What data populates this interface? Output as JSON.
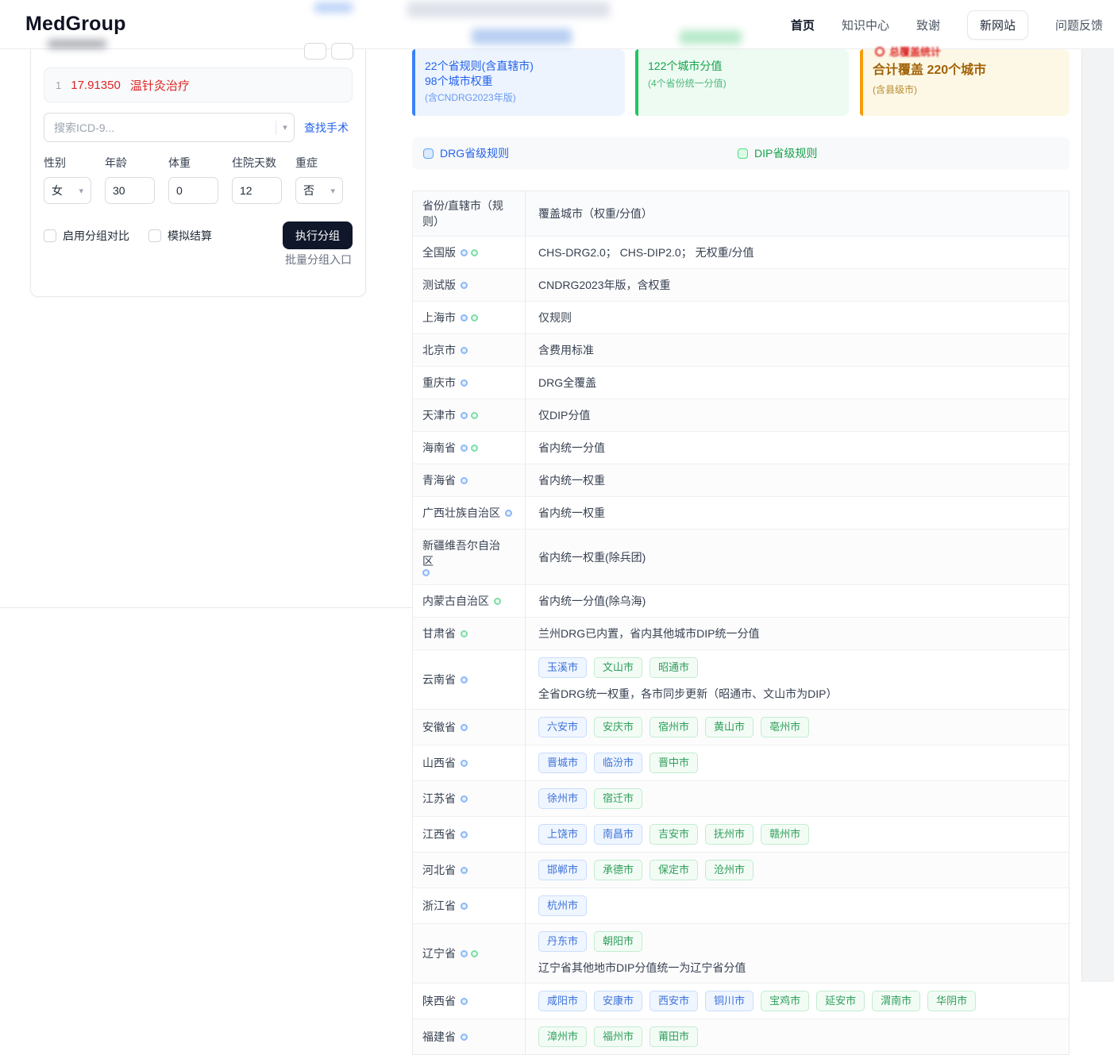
{
  "header": {
    "brand": "MedGroup",
    "nav": [
      {
        "label": "首页",
        "active": true,
        "boxed": false
      },
      {
        "label": "知识中心",
        "active": false,
        "boxed": false
      },
      {
        "label": "致谢",
        "active": false,
        "boxed": false
      },
      {
        "label": "新网站",
        "active": false,
        "boxed": true
      },
      {
        "label": "问题反馈",
        "active": false,
        "boxed": false
      }
    ]
  },
  "panel": {
    "diagnosis": {
      "index": "1",
      "code": "17.91350",
      "name": "温针灸治疗"
    },
    "search": {
      "placeholder": "搜索ICD-9...",
      "find_link": "查找手术"
    },
    "fields": [
      {
        "label": "性别",
        "value": "女",
        "type": "select"
      },
      {
        "label": "年龄",
        "value": "30",
        "type": "input"
      },
      {
        "label": "体重",
        "value": "0",
        "type": "input"
      },
      {
        "label": "住院天数",
        "value": "12",
        "type": "input"
      },
      {
        "label": "重症",
        "value": "否",
        "type": "select"
      }
    ],
    "checkboxes": [
      {
        "label": "启用分组对比",
        "checked": false
      },
      {
        "label": "模拟结算",
        "checked": false
      }
    ],
    "run_button": "执行分组",
    "batch_link": "批量分组入口"
  },
  "stats": {
    "card1": {
      "line1": "22个省规则(含直辖市)",
      "line2": "98个城市权重",
      "line3": "(含CNDRG2023年版)",
      "accent": "#3b82f6"
    },
    "card2": {
      "line1": "122个城市分值",
      "line2": "(4个省份统一分值)",
      "accent": "#22c55e"
    },
    "card3": {
      "title": "总覆盖统计",
      "line1": "合计覆盖 220个城市",
      "line2": "(含县级市)",
      "accent": "#f59e0b"
    }
  },
  "legend": {
    "drg": "DRG省级规则",
    "dip": "DIP省级规则"
  },
  "table": {
    "headers": [
      "省份/直辖市（规则）",
      "覆盖城市（权重/分值）"
    ],
    "rows": [
      {
        "name": "全国版",
        "dots": [
          "drg",
          "dip"
        ],
        "text": "CHS-DRG2.0； CHS-DIP2.0； 无权重/分值"
      },
      {
        "name": "测试版",
        "dots": [
          "drg"
        ],
        "text": "CNDRG2023年版，含权重"
      },
      {
        "name": "上海市",
        "dots": [
          "drg",
          "dip"
        ],
        "text": "仅规则"
      },
      {
        "name": "北京市",
        "dots": [
          "drg"
        ],
        "text": "含费用标准"
      },
      {
        "name": "重庆市",
        "dots": [
          "drg"
        ],
        "text": "DRG全覆盖"
      },
      {
        "name": "天津市",
        "dots": [
          "drg",
          "dip"
        ],
        "text": "仅DIP分值"
      },
      {
        "name": "海南省",
        "dots": [
          "drg",
          "dip"
        ],
        "text": "省内统一分值"
      },
      {
        "name": "青海省",
        "dots": [
          "drg"
        ],
        "text": "省内统一权重"
      },
      {
        "name": "广西壮族自治区",
        "dots": [
          "drg"
        ],
        "text": "省内统一权重"
      },
      {
        "name": "新疆维吾尔自治区",
        "dots": [
          "drg"
        ],
        "text": "省内统一权重(除兵团)"
      },
      {
        "name": "内蒙古自治区",
        "dots": [
          "dip"
        ],
        "text": "省内统一分值(除乌海)"
      },
      {
        "name": "甘肃省",
        "dots": [
          "dip"
        ],
        "text": "兰州DRG已内置，省内其他城市DIP统一分值"
      },
      {
        "name": "云南省",
        "dots": [
          "drg"
        ],
        "chips": [
          {
            "label": "玉溪市",
            "type": "drg"
          },
          {
            "label": "文山市",
            "type": "dip"
          },
          {
            "label": "昭通市",
            "type": "dip"
          }
        ],
        "note": "全省DRG统一权重，各市同步更新（昭通市、文山市为DIP）"
      },
      {
        "name": "安徽省",
        "dots": [
          "drg"
        ],
        "chips": [
          {
            "label": "六安市",
            "type": "drg"
          },
          {
            "label": "安庆市",
            "type": "dip"
          },
          {
            "label": "宿州市",
            "type": "dip"
          },
          {
            "label": "黄山市",
            "type": "dip"
          },
          {
            "label": "亳州市",
            "type": "dip"
          }
        ]
      },
      {
        "name": "山西省",
        "dots": [
          "drg"
        ],
        "chips": [
          {
            "label": "晋城市",
            "type": "drg"
          },
          {
            "label": "临汾市",
            "type": "drg"
          },
          {
            "label": "晋中市",
            "type": "dip"
          }
        ]
      },
      {
        "name": "江苏省",
        "dots": [
          "drg"
        ],
        "chips": [
          {
            "label": "徐州市",
            "type": "drg"
          },
          {
            "label": "宿迁市",
            "type": "dip"
          }
        ]
      },
      {
        "name": "江西省",
        "dots": [
          "drg"
        ],
        "chips": [
          {
            "label": "上饶市",
            "type": "drg"
          },
          {
            "label": "南昌市",
            "type": "drg"
          },
          {
            "label": "吉安市",
            "type": "dip"
          },
          {
            "label": "抚州市",
            "type": "dip"
          },
          {
            "label": "赣州市",
            "type": "dip"
          }
        ]
      },
      {
        "name": "河北省",
        "dots": [
          "drg"
        ],
        "chips": [
          {
            "label": "邯郸市",
            "type": "drg"
          },
          {
            "label": "承德市",
            "type": "dip"
          },
          {
            "label": "保定市",
            "type": "dip"
          },
          {
            "label": "沧州市",
            "type": "dip"
          }
        ]
      },
      {
        "name": "浙江省",
        "dots": [
          "drg"
        ],
        "chips": [
          {
            "label": "杭州市",
            "type": "drg"
          }
        ]
      },
      {
        "name": "辽宁省",
        "dots": [
          "drg",
          "dip"
        ],
        "chips": [
          {
            "label": "丹东市",
            "type": "drg"
          },
          {
            "label": "朝阳市",
            "type": "dip"
          }
        ],
        "note": "辽宁省其他地市DIP分值统一为辽宁省分值"
      },
      {
        "name": "陕西省",
        "dots": [
          "drg"
        ],
        "chips": [
          {
            "label": "咸阳市",
            "type": "drg"
          },
          {
            "label": "安康市",
            "type": "drg"
          },
          {
            "label": "西安市",
            "type": "drg"
          },
          {
            "label": "铜川市",
            "type": "drg"
          },
          {
            "label": "宝鸡市",
            "type": "dip"
          },
          {
            "label": "延安市",
            "type": "dip"
          },
          {
            "label": "渭南市",
            "type": "dip"
          },
          {
            "label": "华阴市",
            "type": "dip"
          }
        ]
      },
      {
        "name": "福建省",
        "dots": [
          "drg"
        ],
        "chips": [
          {
            "label": "漳州市",
            "type": "dip"
          },
          {
            "label": "福州市",
            "type": "dip"
          },
          {
            "label": "莆田市",
            "type": "dip"
          }
        ]
      }
    ]
  },
  "colors": {
    "drg_blue": "#2563eb",
    "dip_green": "#16a34a",
    "danger_red": "#dc2626",
    "card_amber": "#f59e0b",
    "button_dark": "#10172a"
  }
}
